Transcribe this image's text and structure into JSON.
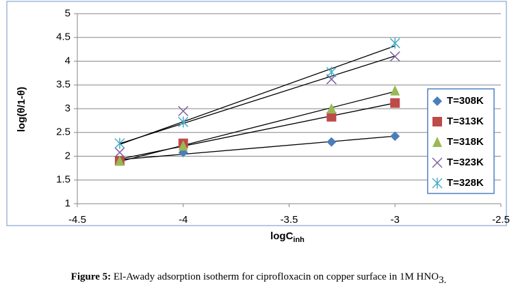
{
  "chart_data": {
    "type": "scatter",
    "xlabel": "logC",
    "xlabel_sub": "inh",
    "ylabel": "log(θ/1-θ)",
    "x": [
      -4.3,
      -4,
      -3.3,
      -3
    ],
    "series": [
      {
        "name": "T=308K",
        "color": "#4a7ebb",
        "marker": "diamond",
        "values": [
          1.9,
          2.08,
          2.3,
          2.42
        ]
      },
      {
        "name": "T=313K",
        "color": "#be4b48",
        "marker": "square",
        "values": [
          1.9,
          2.27,
          2.83,
          3.12
        ]
      },
      {
        "name": "T=318K",
        "color": "#98b954",
        "marker": "triangle",
        "values": [
          1.9,
          2.22,
          3.0,
          3.38
        ]
      },
      {
        "name": "T=323K",
        "color": "#7d60a0",
        "marker": "x",
        "values": [
          2.08,
          2.95,
          3.62,
          4.1
        ]
      },
      {
        "name": "T=328K",
        "color": "#46aac5",
        "marker": "star",
        "values": [
          2.27,
          2.72,
          3.77,
          4.38
        ]
      }
    ],
    "xlim": [
      -4.5,
      -2.5
    ],
    "xticks": [
      -4.5,
      -4,
      -3.5,
      -3,
      -2.5
    ],
    "ylim": [
      1,
      5
    ],
    "yticks": [
      1,
      1.5,
      2,
      2.5,
      3,
      3.5,
      4,
      4.5,
      5
    ],
    "grid": true,
    "trendline": true,
    "legend": "right"
  },
  "caption": {
    "label": "Figure 5:",
    "text": " El-Awady adsorption isotherm for ciprofloxacin on copper surface in 1M HNO",
    "sub": "3."
  }
}
